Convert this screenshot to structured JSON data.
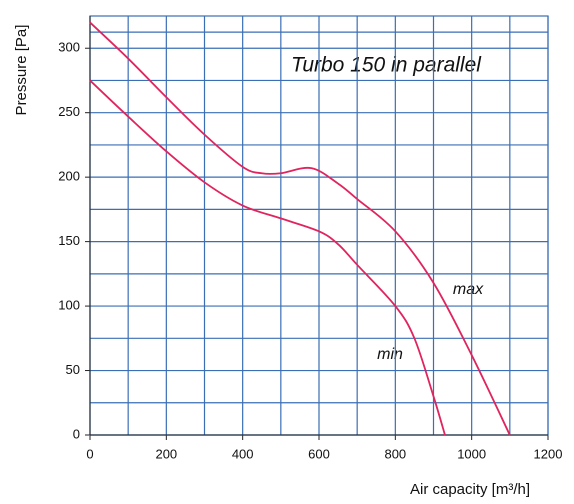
{
  "chart_data": {
    "type": "line",
    "annotations": [
      "Turbo 150 in parallel",
      "max",
      "min"
    ],
    "xlabel": "Air capacity [m³/h]",
    "ylabel": "Pressure [Pa]",
    "xlim": [
      0,
      1200
    ],
    "ylim": [
      0,
      325
    ],
    "xticks": [
      0,
      200,
      400,
      600,
      800,
      1000,
      1200
    ],
    "yticks": [
      0,
      50,
      100,
      150,
      200,
      250,
      300
    ],
    "grid": true,
    "grid_color": "#3a6fb5",
    "series": [
      {
        "color": "#e0245e",
        "x": [
          0,
          100,
          200,
          300,
          400,
          450,
          500,
          580,
          650,
          700,
          800,
          900,
          1000,
          1100
        ],
        "values": [
          320,
          292,
          262,
          233,
          208,
          203,
          203,
          207,
          195,
          183,
          158,
          118,
          62,
          0
        ]
      },
      {
        "color": "#e0245e",
        "x": [
          0,
          100,
          200,
          300,
          400,
          500,
          600,
          650,
          700,
          800,
          850,
          900,
          930
        ],
        "values": [
          275,
          247,
          220,
          196,
          178,
          168,
          158,
          148,
          132,
          100,
          75,
          30,
          0
        ]
      }
    ]
  }
}
